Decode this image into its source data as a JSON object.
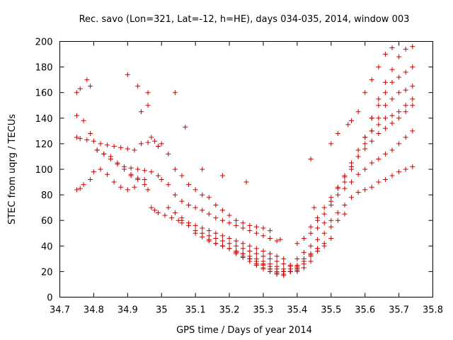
{
  "chart_data": {
    "type": "scatter",
    "title": "Rec. savo (Lon=321, Lat=-12, h=HE), days 034-035, 2014, window 003",
    "xlabel": "GPS time / Days of year 2014",
    "ylabel": "STEC from uqrg / TECUs",
    "xlim": [
      34.7,
      35.8
    ],
    "ylim": [
      0,
      200
    ],
    "xticks": [
      34.7,
      34.8,
      34.9,
      35.0,
      35.1,
      35.2,
      35.3,
      35.4,
      35.5,
      35.6,
      35.7,
      35.8
    ],
    "xtick_labels": [
      "34.7",
      "34.8",
      "34.9",
      "35",
      "35.1",
      "35.2",
      "35.3",
      "35.4",
      "35.5",
      "35.6",
      "35.7",
      "35.8"
    ],
    "yticks": [
      0,
      20,
      40,
      60,
      80,
      100,
      120,
      140,
      160,
      180,
      200
    ],
    "ytick_labels": [
      "0",
      "20",
      "40",
      "60",
      "80",
      "100",
      "120",
      "140",
      "160",
      "180",
      "200"
    ],
    "grid": false,
    "marker": "plus",
    "color": "#cc0000",
    "series": [
      {
        "name": "STEC",
        "x": [
          34.75,
          34.76,
          34.78,
          34.8,
          34.82,
          34.84,
          34.86,
          34.88,
          34.9,
          34.92,
          34.94,
          34.96,
          34.98,
          34.75,
          34.77,
          34.79,
          34.81,
          34.83,
          34.85,
          34.87,
          34.89,
          34.91,
          34.93,
          34.95,
          34.97,
          34.99,
          34.75,
          34.76,
          34.78,
          34.79,
          34.81,
          34.83,
          34.85,
          34.87,
          34.89,
          34.91,
          34.93,
          34.95,
          34.75,
          34.76,
          34.77,
          34.79,
          34.8,
          34.82,
          34.84,
          34.86,
          34.88,
          34.9,
          34.92,
          34.91,
          34.93,
          34.95,
          34.96,
          34.97,
          34.98,
          34.99,
          35.01,
          35.03,
          35.05,
          35.06,
          34.94,
          34.96,
          34.97,
          34.99,
          35.0,
          35.02,
          35.04,
          35.06,
          35.08,
          35.1,
          35.12,
          35.14,
          35.16,
          35.18,
          35.2,
          35.22,
          35.24,
          35.26,
          35.28,
          35.3,
          35.32,
          35.0,
          35.02,
          35.04,
          35.06,
          35.08,
          35.1,
          35.12,
          35.14,
          35.16,
          35.18,
          35.2,
          35.22,
          35.24,
          35.26,
          35.28,
          35.3,
          35.32,
          35.34,
          35.02,
          35.04,
          35.06,
          35.08,
          35.1,
          35.12,
          35.14,
          35.16,
          35.18,
          35.2,
          35.22,
          35.24,
          35.26,
          35.28,
          35.3,
          35.32,
          35.34,
          35.36,
          35.06,
          35.08,
          35.1,
          35.12,
          35.14,
          35.16,
          35.18,
          35.2,
          35.22,
          35.24,
          35.26,
          35.28,
          35.3,
          35.32,
          35.34,
          35.36,
          35.38,
          35.1,
          35.12,
          35.14,
          35.16,
          35.18,
          35.2,
          35.22,
          35.24,
          35.26,
          35.28,
          35.3,
          35.32,
          35.34,
          35.36,
          35.38,
          35.4,
          35.14,
          35.16,
          35.18,
          35.2,
          35.22,
          35.24,
          35.26,
          35.28,
          35.3,
          35.32,
          35.34,
          35.36,
          35.38,
          35.4,
          35.42,
          35.18,
          35.2,
          35.22,
          35.24,
          35.26,
          35.28,
          35.3,
          35.32,
          35.34,
          35.36,
          35.38,
          35.4,
          35.42,
          35.44,
          35.22,
          35.24,
          35.26,
          35.28,
          35.3,
          35.32,
          35.34,
          35.36,
          35.38,
          35.4,
          35.42,
          35.44,
          35.46,
          35.26,
          35.28,
          35.3,
          35.32,
          35.34,
          35.36,
          35.38,
          35.4,
          35.42,
          35.44,
          35.46,
          35.48,
          35.3,
          35.32,
          35.34,
          35.36,
          35.38,
          35.4,
          35.42,
          35.44,
          35.46,
          35.48,
          35.5,
          35.36,
          35.38,
          35.4,
          35.42,
          35.44,
          35.46,
          35.48,
          35.5,
          35.52,
          35.54,
          35.4,
          35.42,
          35.44,
          35.46,
          35.48,
          35.5,
          35.52,
          35.54,
          35.56,
          35.58,
          35.6,
          35.62,
          35.64,
          35.66,
          35.68,
          35.7,
          35.72,
          35.74,
          35.44,
          35.46,
          35.48,
          35.5,
          35.52,
          35.54,
          35.56,
          35.58,
          35.6,
          35.62,
          35.64,
          35.66,
          35.68,
          35.7,
          35.72,
          35.74,
          35.46,
          35.48,
          35.5,
          35.52,
          35.54,
          35.56,
          35.58,
          35.6,
          35.62,
          35.64,
          35.66,
          35.68,
          35.7,
          35.72,
          35.74,
          35.5,
          35.52,
          35.54,
          35.56,
          35.58,
          35.6,
          35.62,
          35.64,
          35.66,
          35.68,
          35.7,
          35.72,
          35.74,
          35.54,
          35.56,
          35.58,
          35.6,
          35.62,
          35.64,
          35.66,
          35.68,
          35.7,
          35.72,
          35.74,
          35.58,
          35.6,
          35.62,
          35.64,
          35.66,
          35.68,
          35.7,
          35.72,
          35.74,
          35.62,
          35.64,
          35.66,
          35.68,
          35.7,
          35.72,
          35.74,
          35.44,
          35.5,
          35.52,
          35.55,
          35.56,
          35.58,
          35.6,
          35.62,
          35.64,
          35.66,
          35.68,
          34.9,
          34.93,
          34.96,
          35.04,
          35.07,
          35.12,
          35.18,
          35.25,
          35.35,
          35.45
        ],
        "y": [
          125,
          124,
          123,
          122,
          120,
          119,
          118,
          117,
          116,
          115,
          120,
          121,
          122,
          142,
          138,
          128,
          115,
          112,
          110,
          105,
          102,
          101,
          100,
          99,
          98,
          95,
          160,
          163,
          170,
          165,
          115,
          112,
          108,
          104,
          100,
          96,
          93,
          92,
          84,
          85,
          88,
          92,
          98,
          100,
          96,
          90,
          86,
          84,
          86,
          95,
          92,
          88,
          84,
          70,
          68,
          66,
          64,
          62,
          60,
          58,
          145,
          150,
          125,
          118,
          120,
          112,
          100,
          95,
          88,
          84,
          80,
          78,
          72,
          68,
          64,
          60,
          58,
          56,
          55,
          54,
          52,
          92,
          88,
          80,
          75,
          72,
          70,
          68,
          65,
          62,
          60,
          58,
          56,
          54,
          52,
          50,
          48,
          46,
          44,
          70,
          66,
          62,
          58,
          56,
          54,
          52,
          50,
          48,
          46,
          44,
          42,
          40,
          38,
          36,
          34,
          32,
          30,
          60,
          56,
          52,
          50,
          48,
          46,
          44,
          42,
          40,
          38,
          36,
          34,
          32,
          30,
          28,
          26,
          24,
          50,
          47,
          44,
          42,
          40,
          38,
          36,
          34,
          32,
          30,
          28,
          26,
          24,
          22,
          20,
          20,
          45,
          42,
          40,
          38,
          36,
          34,
          30,
          28,
          26,
          24,
          22,
          20,
          20,
          21,
          23,
          40,
          38,
          35,
          32,
          30,
          28,
          25,
          22,
          20,
          18,
          20,
          22,
          26,
          28,
          34,
          31,
          28,
          25,
          22,
          20,
          18,
          20,
          22,
          25,
          30,
          34,
          38,
          30,
          26,
          23,
          20,
          18,
          18,
          20,
          24,
          28,
          32,
          36,
          40,
          26,
          22,
          19,
          17,
          20,
          23,
          28,
          33,
          38,
          42,
          46,
          20,
          25,
          30,
          35,
          40,
          45,
          50,
          55,
          60,
          65,
          42,
          46,
          50,
          54,
          58,
          60,
          66,
          72,
          78,
          82,
          84,
          86,
          90,
          92,
          95,
          98,
          100,
          102,
          55,
          60,
          65,
          72,
          80,
          85,
          90,
          96,
          100,
          105,
          108,
          112,
          115,
          120,
          125,
          130,
          62,
          70,
          78,
          86,
          94,
          102,
          110,
          116,
          122,
          128,
          132,
          136,
          140,
          145,
          150,
          75,
          85,
          95,
          105,
          115,
          125,
          130,
          135,
          140,
          142,
          145,
          150,
          155,
          90,
          100,
          110,
          120,
          130,
          140,
          150,
          155,
          160,
          162,
          165,
          110,
          125,
          140,
          150,
          160,
          168,
          172,
          176,
          180,
          140,
          155,
          168,
          178,
          188,
          194,
          196,
          108,
          120,
          128,
          135,
          138,
          145,
          160,
          170,
          180,
          190,
          195,
          174,
          165,
          160,
          160,
          133,
          100,
          95,
          90,
          45,
          70
        ]
      }
    ]
  }
}
